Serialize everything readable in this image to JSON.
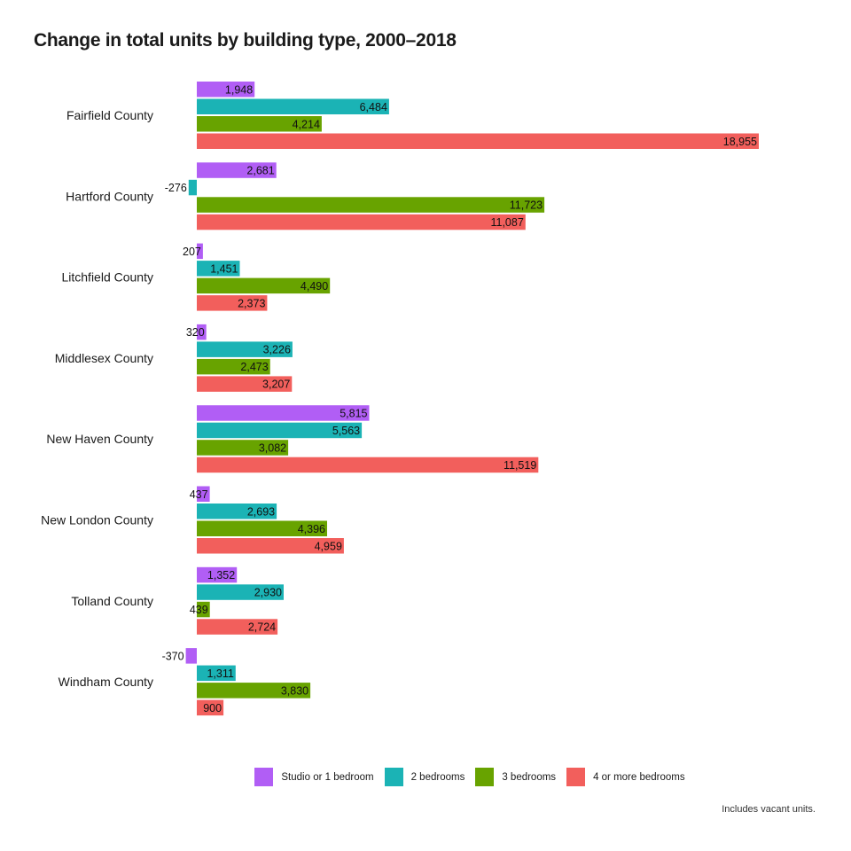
{
  "chart_data": {
    "type": "bar",
    "orientation": "horizontal",
    "title": "Change in total units by building type, 2000–2018",
    "caption": "Includes vacant units.",
    "categories": [
      "Fairfield County",
      "Hartford County",
      "Litchfield County",
      "Middlesex County",
      "New Haven County",
      "New London County",
      "Tolland County",
      "Windham County"
    ],
    "series": [
      {
        "name": "Studio or 1 bedroom",
        "color": "#b15ef5",
        "values": [
          1948,
          2681,
          207,
          320,
          5815,
          437,
          1352,
          -370
        ],
        "labels": [
          "1,948",
          "2,681",
          "207",
          "320",
          "5,815",
          "437",
          "1,352",
          "-370"
        ]
      },
      {
        "name": "2 bedrooms",
        "color": "#1bb3b5",
        "values": [
          6484,
          -276,
          1451,
          3226,
          5563,
          2693,
          2930,
          1311
        ],
        "labels": [
          "6,484",
          "-276",
          "1,451",
          "3,226",
          "5,563",
          "2,693",
          "2,930",
          "1,311"
        ]
      },
      {
        "name": "3 bedrooms",
        "color": "#68a300",
        "values": [
          4214,
          11723,
          4490,
          2473,
          3082,
          4396,
          439,
          3830
        ],
        "labels": [
          "4,214",
          "11,723",
          "4,490",
          "2,473",
          "3,082",
          "4,396",
          "439",
          "3,830"
        ]
      },
      {
        "name": "4 or more bedrooms",
        "color": "#f25f5c",
        "values": [
          18955,
          11087,
          2373,
          3207,
          11519,
          4959,
          2724,
          900
        ],
        "labels": [
          "18,955",
          "11,087",
          "2,373",
          "3,207",
          "11,519",
          "4,959",
          "2,724",
          "900"
        ]
      }
    ],
    "legend_position": "bottom",
    "grid": false
  }
}
